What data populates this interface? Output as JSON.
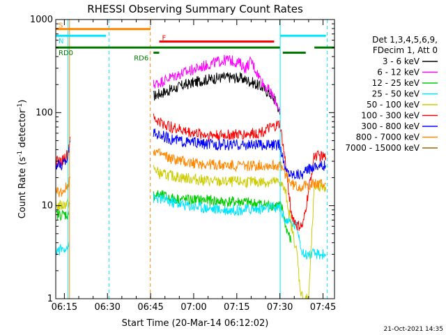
{
  "chart_data": {
    "type": "line",
    "title": "RHESSI Observing Summary Count Rates",
    "xlabel": "Start Time (20-Mar-14 06:12:02)",
    "ylabel_main": "Count Rate (s",
    "ylabel_sup1": "-1",
    "ylabel_mid": " detector",
    "ylabel_sup2": "-1",
    "ylabel_end": ")",
    "y_scale": "log",
    "ylim": [
      1,
      1000
    ],
    "y_ticks": [
      {
        "value": 1,
        "label": "1"
      },
      {
        "value": 10,
        "label": "10"
      },
      {
        "value": 100,
        "label": "100"
      },
      {
        "value": 1000,
        "label": "1000"
      }
    ],
    "x_unit": "minutes after 06:12:02",
    "xlim": [
      0,
      97
    ],
    "x_ticks": [
      {
        "minute": 3,
        "label": "06:15"
      },
      {
        "minute": 18,
        "label": "06:30"
      },
      {
        "minute": 33,
        "label": "06:45"
      },
      {
        "minute": 48,
        "label": "07:00"
      },
      {
        "minute": 63,
        "label": "07:15"
      },
      {
        "minute": 78,
        "label": "07:30"
      },
      {
        "minute": 93,
        "label": "07:45"
      }
    ],
    "grid": false,
    "legend_header": [
      "Det 1,3,4,5,6,9,",
      "FDecim 1, Att 0"
    ],
    "legend_position": "right",
    "series": [
      {
        "name": "3 - 6 keV",
        "color": "#000000",
        "x": [
          34,
          36,
          40,
          44,
          48,
          52,
          56,
          60,
          64,
          68,
          72,
          75,
          77,
          78
        ],
        "y": [
          150,
          160,
          175,
          195,
          210,
          225,
          235,
          240,
          235,
          215,
          185,
          155,
          125,
          95
        ]
      },
      {
        "name": "6 - 12 keV",
        "color": "#ff00ff",
        "x": [
          34,
          36,
          40,
          44,
          48,
          52,
          56,
          60,
          64,
          66,
          68,
          70,
          72,
          75,
          77,
          78
        ],
        "y": [
          200,
          210,
          240,
          265,
          290,
          320,
          350,
          370,
          340,
          300,
          360,
          270,
          210,
          160,
          125,
          100
        ]
      },
      {
        "name": "12 - 25 keV",
        "color": "#00cc00",
        "x": [
          0,
          2,
          4,
          4.5,
          34,
          36,
          40,
          46,
          52,
          58,
          64,
          70,
          76,
          78,
          79,
          80,
          82
        ],
        "y": [
          8,
          8,
          8,
          8,
          13,
          13,
          12,
          11.5,
          11.5,
          11,
          11,
          10.5,
          10,
          10,
          9,
          6,
          4
        ]
      },
      {
        "name": "25 - 50 keV",
        "color": "#00e5ff",
        "x": [
          0,
          2,
          3.5,
          4.5,
          34,
          36,
          40,
          46,
          52,
          58,
          64,
          70,
          76,
          78,
          79,
          80,
          84,
          86,
          90,
          94
        ],
        "y": [
          3.3,
          3.4,
          3.6,
          3.6,
          12,
          12,
          11,
          10,
          9.5,
          9,
          9,
          9.2,
          9.5,
          9.5,
          8,
          7,
          6,
          3,
          3,
          3
        ]
      },
      {
        "name": "50 - 100 keV",
        "color": "#cccc00",
        "x": [
          0,
          2,
          4,
          5,
          34,
          35,
          36,
          40,
          44,
          50,
          56,
          62,
          68,
          74,
          78,
          80,
          82,
          84,
          85,
          86,
          88,
          90,
          94
        ],
        "y": [
          10,
          10,
          10.5,
          10.5,
          25,
          24,
          22,
          21,
          20,
          19,
          18,
          18,
          18,
          18,
          18,
          14,
          6,
          3,
          1.3,
          1,
          1,
          16,
          16
        ]
      },
      {
        "name": "100 - 300 keV",
        "color": "#ff0000",
        "x": [
          0,
          2,
          4,
          5,
          34,
          36,
          40,
          46,
          52,
          58,
          64,
          70,
          76,
          78,
          80,
          82,
          84,
          86,
          90,
          94
        ],
        "y": [
          30,
          30,
          35,
          55,
          85,
          80,
          70,
          62,
          58,
          57,
          58,
          60,
          70,
          75,
          28,
          8,
          6,
          6,
          35,
          33
        ]
      },
      {
        "name": "300 - 800 keV",
        "color": "#0000ff",
        "x": [
          0,
          2,
          4,
          5,
          34,
          36,
          40,
          46,
          52,
          58,
          64,
          70,
          76,
          78,
          80,
          82,
          84,
          86,
          90,
          94
        ],
        "y": [
          27,
          27,
          32,
          48,
          60,
          58,
          52,
          48,
          46,
          45,
          45,
          45,
          45,
          45,
          24,
          22,
          22,
          22,
          27,
          27
        ]
      },
      {
        "name": "800 - 7000 keV",
        "color": "#ff8800",
        "x": [
          0,
          2,
          4,
          5,
          34,
          36,
          40,
          46,
          52,
          58,
          64,
          70,
          76,
          78,
          80,
          82,
          84,
          86,
          90,
          94
        ],
        "y": [
          14,
          14,
          16,
          20,
          40,
          36,
          32,
          29,
          28,
          27,
          27,
          27,
          27,
          27,
          22,
          17,
          16,
          16,
          17,
          17
        ]
      },
      {
        "name": "7000 - 15000 keV",
        "color": "#996600",
        "x": [],
        "y": []
      }
    ],
    "vertical_markers": [
      {
        "minute": 4.3,
        "color": "#00e5ff",
        "style": "solid"
      },
      {
        "minute": 4.8,
        "color": "#ff8800",
        "style": "solid"
      },
      {
        "minute": 18.5,
        "color": "#00e5ff",
        "style": "dashed"
      },
      {
        "minute": 32.9,
        "color": "#ff8800",
        "style": "dashed"
      },
      {
        "minute": 78.1,
        "color": "#00e5ff",
        "style": "solid"
      },
      {
        "minute": 94.5,
        "color": "#00e5ff",
        "style": "dashed"
      }
    ],
    "flag_bars": [
      {
        "label": "S",
        "color": "#ff8800",
        "x_start": 0,
        "x_end": 33,
        "y": 790
      },
      {
        "label": "N",
        "color": "#00e5ff",
        "x_start": 0,
        "x_end": 17.5,
        "y": 670
      },
      {
        "label": "",
        "color": "#00e5ff",
        "x_start": 78,
        "x_end": 94,
        "y": 670
      },
      {
        "label": "F",
        "color": "#ff0000",
        "x_start": 36,
        "x_end": 76,
        "y": 580
      },
      {
        "label": "RD0",
        "color": "#007700",
        "x_start": 0,
        "x_end": 78,
        "y": 500
      },
      {
        "label": "",
        "color": "#007700",
        "x_start": 79,
        "x_end": 87,
        "y": 440
      },
      {
        "label": "",
        "color": "#007700",
        "x_start": 90,
        "x_end": 97,
        "y": 500
      },
      {
        "label": "RD6",
        "color": "#007700",
        "x_start": 34,
        "x_end": 36,
        "y": 440
      }
    ]
  },
  "footer_timestamp": "21-Oct-2021 14:35"
}
